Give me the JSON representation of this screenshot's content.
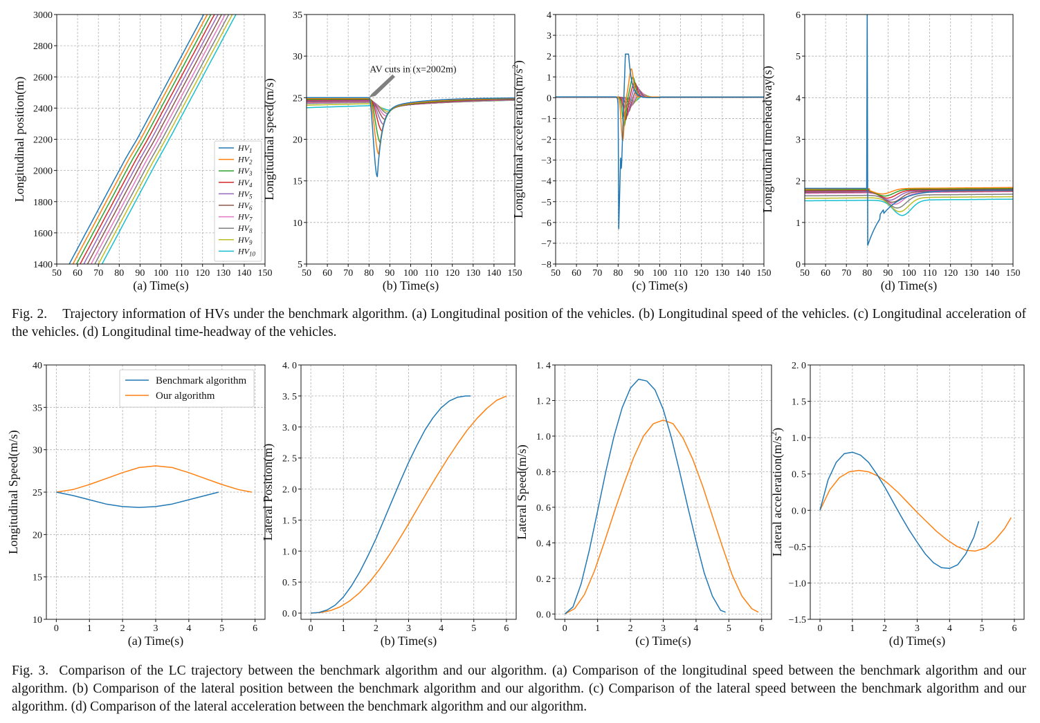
{
  "figures": [
    {
      "id": "fig2",
      "caption": {
        "label": "Fig. 2.",
        "text": "Trajectory information of HVs under the benchmark algorithm. (a) Longitudinal position of the vehicles. (b) Longitudinal speed of the vehicles. (c) Longitudinal acceleration of the vehicles. (d) Longitudinal time-headway of the vehicles."
      }
    },
    {
      "id": "fig3",
      "caption": {
        "label": "Fig. 3.",
        "text": "Comparison of the LC trajectory between the benchmark algorithm and our algorithm. (a) Comparison of the longitudinal speed between the benchmark algorithm and our algorithm. (b) Comparison of the lateral position between the benchmark algorithm and our algorithm. (c) Comparison of the lateral speed between the benchmark algorithm and our algorithm. (d) Comparison of the lateral acceleration between the benchmark algorithm and our algorithm."
      }
    }
  ],
  "colors": [
    "#1f77b4",
    "#ff7f0e",
    "#2ca02c",
    "#d62728",
    "#9467bd",
    "#8c564b",
    "#e377c2",
    "#7f7f7f",
    "#bcbd22",
    "#17becf"
  ],
  "chart_data": [
    {
      "id": "fig2a",
      "type": "line",
      "generator": "position",
      "xlabel": "(a) Time(s)",
      "ylabel": "Longitudinal position(m)",
      "xlim": [
        50,
        150
      ],
      "ylim": [
        1400,
        3000
      ],
      "xticks": [
        50,
        60,
        70,
        80,
        90,
        100,
        110,
        120,
        130,
        140,
        150
      ],
      "yticks": [
        1400,
        1600,
        1800,
        2000,
        2200,
        2400,
        2600,
        2800,
        3000
      ],
      "legend": {
        "placement": "lower-right",
        "entries": [
          {
            "base": "HV",
            "sub": "1"
          },
          {
            "base": "HV",
            "sub": "2"
          },
          {
            "base": "HV",
            "sub": "3"
          },
          {
            "base": "HV",
            "sub": "4"
          },
          {
            "base": "HV",
            "sub": "5"
          },
          {
            "base": "HV",
            "sub": "6"
          },
          {
            "base": "HV",
            "sub": "7"
          },
          {
            "base": "HV",
            "sub": "8"
          },
          {
            "base": "HV",
            "sub": "9"
          },
          {
            "base": "HV",
            "sub": "10"
          }
        ]
      },
      "params": {
        "speed": 25,
        "x0_at_t": [
          56,
          1400
        ],
        "vehicle_gap_s": 1.75,
        "kink_t": 82,
        "kink_m": 2002
      }
    },
    {
      "id": "fig2b",
      "type": "line",
      "generator": "speed",
      "xlabel": "(b) Time(s)",
      "ylabel": "Longitudinal speed(m/s)",
      "xlim": [
        50,
        150
      ],
      "ylim": [
        5,
        35
      ],
      "xticks": [
        50,
        60,
        70,
        80,
        90,
        100,
        110,
        120,
        130,
        140,
        150
      ],
      "yticks": [
        5,
        10,
        15,
        20,
        25,
        30,
        35
      ],
      "annotation": {
        "text": "AV cuts in (x=2002m)",
        "point": [
          80,
          25
        ]
      },
      "params": {
        "cut_in_t": 80,
        "base": 25,
        "min_values": [
          15.5,
          18.2,
          19.6,
          21.0,
          21.8,
          22.4,
          22.8,
          23.1,
          23.3,
          23.5
        ],
        "min_times": [
          84,
          84.7,
          85.5,
          86.3,
          87,
          87.7,
          88.3,
          89,
          89.6,
          90.2
        ],
        "pre_levels": [
          25,
          24.9,
          24.8,
          24.7,
          24.6,
          24.5,
          24.4,
          24.3,
          24.1,
          23.8
        ]
      }
    },
    {
      "id": "fig2c",
      "type": "line",
      "generator": "accel",
      "xlabel": "(c) Time(s)",
      "ylabel": "Longitudinal acceleration(m/s²)",
      "ylabel_base": "Longitudinal acceleration(m/s",
      "ylabel_sup": "2",
      "ylabel_end": ")",
      "xlim": [
        50,
        150
      ],
      "ylim": [
        -8,
        4
      ],
      "xticks": [
        50,
        60,
        70,
        80,
        90,
        100,
        110,
        120,
        130,
        140,
        150
      ],
      "yticks": [
        -8,
        -7,
        -6,
        -5,
        -4,
        -3,
        -2,
        -1,
        0,
        1,
        2,
        3,
        4
      ],
      "params": {
        "min_values": [
          -6.3,
          -2.1,
          -1.4,
          -1.1,
          -0.9,
          -0.7,
          -0.5,
          -0.4,
          -0.3,
          -0.2
        ],
        "max_values": [
          2.1,
          1.35,
          0.95,
          0.7,
          0.55,
          0.4,
          0.3,
          0.2,
          0.15,
          0.1
        ]
      }
    },
    {
      "id": "fig2d",
      "type": "line",
      "generator": "headway",
      "xlabel": "(d) Time(s)",
      "ylabel": "Longitudinal timeheadway(s)",
      "xlim": [
        50,
        150
      ],
      "ylim": [
        0,
        6
      ],
      "xticks": [
        50,
        60,
        70,
        80,
        90,
        100,
        110,
        120,
        130,
        140,
        150
      ],
      "yticks": [
        0,
        1,
        2,
        3,
        4,
        5,
        6
      ],
      "params": {
        "cut_in_t": 80,
        "min_hv1": 0.45,
        "steady": 1.8
      }
    },
    {
      "id": "fig3a",
      "type": "line",
      "xlabel": "(a) Time(s)",
      "ylabel": "Longitudinal Speed(m/s)",
      "xlim": [
        -0.3,
        6.3
      ],
      "ylim": [
        10,
        40
      ],
      "xticks": [
        0,
        1,
        2,
        3,
        4,
        5,
        6
      ],
      "yticks": [
        10,
        15,
        20,
        25,
        30,
        35,
        40
      ],
      "legend": {
        "placement": "upper-right",
        "entries": [
          "Benchmark algorithm",
          "Our algorithm"
        ]
      },
      "series": [
        {
          "name": "Benchmark algorithm",
          "x": [
            0,
            0.5,
            1,
            1.5,
            2,
            2.5,
            3,
            3.5,
            4,
            4.5,
            4.9
          ],
          "y": [
            25,
            24.6,
            24.1,
            23.6,
            23.3,
            23.2,
            23.3,
            23.6,
            24.1,
            24.6,
            25
          ]
        },
        {
          "name": "Our algorithm",
          "x": [
            0,
            0.5,
            1,
            1.5,
            2,
            2.5,
            3,
            3.5,
            4,
            4.5,
            5,
            5.5,
            5.9
          ],
          "y": [
            25,
            25.3,
            25.9,
            26.6,
            27.3,
            27.9,
            28.1,
            27.9,
            27.3,
            26.6,
            25.9,
            25.3,
            25
          ]
        }
      ]
    },
    {
      "id": "fig3b",
      "type": "line",
      "xlabel": "(b) Time(s)",
      "ylabel": "Lateral Position(m)",
      "xlim": [
        -0.3,
        6.3
      ],
      "ylim": [
        -0.1,
        4.0
      ],
      "xticks": [
        0,
        1,
        2,
        3,
        4,
        5,
        6
      ],
      "yticks": [
        0.0,
        0.5,
        1.0,
        1.5,
        2.0,
        2.5,
        3.0,
        3.5,
        4.0
      ],
      "ytick_labels": [
        "0. 0",
        "0. 5",
        "1. 0",
        "1. 5",
        "2. 0",
        "2. 5",
        "3. 0",
        "3. 5",
        "4. 0"
      ],
      "series": [
        {
          "name": "Benchmark algorithm",
          "x": [
            0,
            0.25,
            0.5,
            0.75,
            1,
            1.25,
            1.5,
            1.75,
            2,
            2.25,
            2.5,
            2.75,
            3,
            3.25,
            3.5,
            3.75,
            4,
            4.25,
            4.5,
            4.75,
            4.9
          ],
          "y": [
            0,
            0.01,
            0.05,
            0.13,
            0.26,
            0.44,
            0.66,
            0.92,
            1.2,
            1.51,
            1.82,
            2.13,
            2.43,
            2.7,
            2.95,
            3.15,
            3.31,
            3.42,
            3.48,
            3.5,
            3.5
          ]
        },
        {
          "name": "Our algorithm",
          "x": [
            0,
            0.3,
            0.6,
            0.9,
            1.2,
            1.5,
            1.8,
            2.1,
            2.4,
            2.7,
            3,
            3.3,
            3.6,
            3.9,
            4.2,
            4.5,
            4.8,
            5.1,
            5.4,
            5.7,
            6
          ],
          "y": [
            0,
            0.01,
            0.04,
            0.1,
            0.2,
            0.33,
            0.5,
            0.7,
            0.93,
            1.18,
            1.44,
            1.71,
            1.98,
            2.24,
            2.49,
            2.73,
            2.95,
            3.14,
            3.3,
            3.43,
            3.5
          ]
        }
      ]
    },
    {
      "id": "fig3c",
      "type": "line",
      "xlabel": "(c) Time(s)",
      "ylabel": "Lateral Speed(m/s)",
      "xlim": [
        -0.3,
        6.3
      ],
      "ylim": [
        -0.03,
        1.4
      ],
      "xticks": [
        0,
        1,
        2,
        3,
        4,
        5,
        6
      ],
      "yticks": [
        0.0,
        0.2,
        0.4,
        0.6,
        0.8,
        1.0,
        1.2,
        1.4
      ],
      "ytick_labels": [
        "0. 0",
        "0. 2",
        "0. 4",
        "0. 6",
        "0. 8",
        "1. 0",
        "1. 2",
        "1. 4"
      ],
      "series": [
        {
          "name": "Benchmark algorithm",
          "x": [
            0,
            0.25,
            0.5,
            0.75,
            1,
            1.25,
            1.5,
            1.75,
            2,
            2.25,
            2.5,
            2.75,
            3,
            3.25,
            3.5,
            3.75,
            4,
            4.25,
            4.5,
            4.75,
            4.9
          ],
          "y": [
            0,
            0.04,
            0.17,
            0.36,
            0.58,
            0.8,
            1.0,
            1.16,
            1.27,
            1.32,
            1.31,
            1.26,
            1.15,
            0.99,
            0.8,
            0.6,
            0.41,
            0.23,
            0.1,
            0.02,
            0.01
          ]
        },
        {
          "name": "Our algorithm",
          "x": [
            0,
            0.3,
            0.6,
            0.9,
            1.2,
            1.5,
            1.8,
            2.1,
            2.4,
            2.7,
            3,
            3.3,
            3.6,
            3.9,
            4.2,
            4.5,
            4.8,
            5.1,
            5.4,
            5.7,
            5.9
          ],
          "y": [
            0,
            0.03,
            0.11,
            0.24,
            0.4,
            0.57,
            0.73,
            0.88,
            1.0,
            1.07,
            1.09,
            1.07,
            0.99,
            0.87,
            0.72,
            0.55,
            0.38,
            0.22,
            0.1,
            0.03,
            0.01
          ]
        }
      ]
    },
    {
      "id": "fig3d",
      "type": "line",
      "xlabel": "(d) Time(s)",
      "ylabel": "Lateral acceleration(m/s²)",
      "ylabel_base": "Lateral acceleration(m/s",
      "ylabel_sup": "2",
      "ylabel_end": ")",
      "xlim": [
        -0.3,
        6.3
      ],
      "ylim": [
        -1.5,
        2.0
      ],
      "xticks": [
        0,
        1,
        2,
        3,
        4,
        5,
        6
      ],
      "yticks": [
        -1.5,
        -1.0,
        -0.5,
        0.0,
        0.5,
        1.0,
        1.5,
        2.0
      ],
      "ytick_labels": [
        "−1.5",
        "−1.0",
        "−0.5",
        "0. 0",
        "0. 5",
        "1. 0",
        "1. 5",
        "2. 0"
      ],
      "series": [
        {
          "name": "Benchmark algorithm",
          "x": [
            0,
            0.25,
            0.5,
            0.75,
            1,
            1.25,
            1.5,
            1.75,
            2,
            2.25,
            2.5,
            2.75,
            3,
            3.25,
            3.5,
            3.75,
            4,
            4.25,
            4.5,
            4.75,
            4.9
          ],
          "y": [
            0,
            0.42,
            0.66,
            0.78,
            0.8,
            0.76,
            0.66,
            0.5,
            0.32,
            0.12,
            -0.08,
            -0.27,
            -0.44,
            -0.6,
            -0.72,
            -0.79,
            -0.8,
            -0.75,
            -0.6,
            -0.37,
            -0.15
          ]
        },
        {
          "name": "Our algorithm",
          "x": [
            0,
            0.3,
            0.6,
            0.9,
            1.2,
            1.5,
            1.8,
            2.1,
            2.4,
            2.7,
            3,
            3.3,
            3.6,
            3.9,
            4.2,
            4.5,
            4.8,
            5.1,
            5.4,
            5.7,
            5.9
          ],
          "y": [
            0,
            0.28,
            0.45,
            0.53,
            0.55,
            0.53,
            0.47,
            0.37,
            0.25,
            0.11,
            -0.03,
            -0.16,
            -0.29,
            -0.4,
            -0.49,
            -0.55,
            -0.56,
            -0.52,
            -0.41,
            -0.25,
            -0.1
          ]
        }
      ]
    }
  ]
}
